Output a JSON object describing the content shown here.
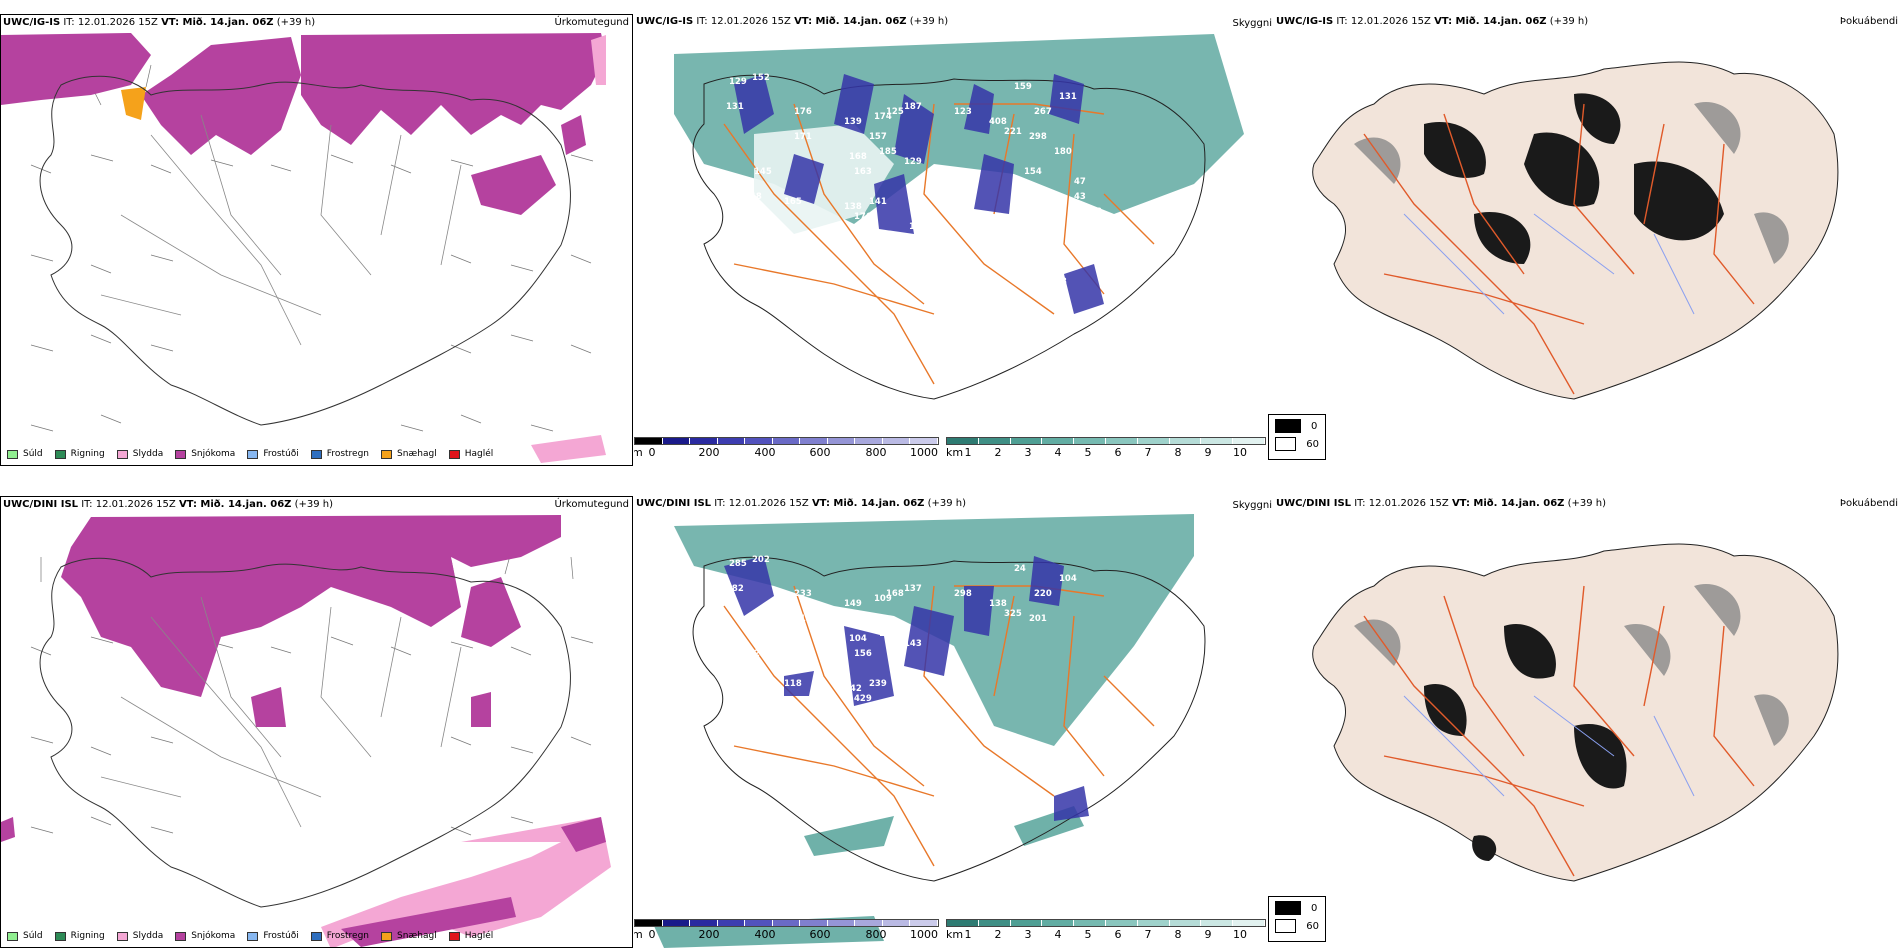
{
  "forecast_info": {
    "issue_time": "IT: 12.01.2026 15Z",
    "valid_time": "VT: Mið. 14.jan. 06Z",
    "lead": "(+39 h)"
  },
  "rows": [
    {
      "model": "UWC/IG-IS",
      "precip_panel_label": "Úrkomutegund",
      "ceiling_panel_label": "Skyggni",
      "fog_panel_label": "Þokuábendi",
      "cloud_base_labels": [
        "129",
        "152",
        "131",
        "176",
        "171",
        "145",
        "148",
        "165",
        "139",
        "168",
        "174",
        "157",
        "125",
        "185",
        "163",
        "187",
        "129",
        "138",
        "141",
        "176",
        "168",
        "123",
        "159",
        "267",
        "298",
        "408",
        "221",
        "131",
        "180",
        "154",
        "47",
        "43",
        "238",
        "158"
      ]
    },
    {
      "model": "UWC/DINI ISL",
      "precip_panel_label": "Úrkomutegund",
      "ceiling_panel_label": "Skyggni",
      "fog_panel_label": "Þokuábendi",
      "cloud_base_labels": [
        "285",
        "202",
        "282",
        "233",
        "116",
        "200",
        "300",
        "118",
        "149",
        "104",
        "109",
        "140",
        "168",
        "125",
        "156",
        "137",
        "143",
        "142",
        "239",
        "429",
        "171",
        "298",
        "24",
        "220",
        "201",
        "138",
        "325",
        "104"
      ]
    }
  ],
  "precip_legend": [
    {
      "label": "Súld",
      "color": "#90ee90"
    },
    {
      "label": "Rigning",
      "color": "#2e8b57"
    },
    {
      "label": "Slydda",
      "color": "#f4a7d4"
    },
    {
      "label": "Snjókoma",
      "color": "#b5429f"
    },
    {
      "label": "Frostúði",
      "color": "#87b7f0"
    },
    {
      "label": "Frostregn",
      "color": "#2f6fbf"
    },
    {
      "label": "Snæhagl",
      "color": "#f5a21b"
    },
    {
      "label": "Haglél",
      "color": "#e0141b"
    }
  ],
  "ceiling_scale": {
    "unit": "m",
    "ticks": [
      "0",
      "200",
      "400",
      "600",
      "800",
      "1000"
    ],
    "colors": [
      "#000000",
      "#1a1a8a",
      "#2a2aa0",
      "#3d3db0",
      "#5252bd",
      "#6a6ac6",
      "#8080cf",
      "#9595d6",
      "#a8a8dd",
      "#babae4",
      "#cbcbeb"
    ]
  },
  "visibility_scale": {
    "unit": "km",
    "ticks": [
      "1",
      "2",
      "3",
      "4",
      "5",
      "6",
      "7",
      "8",
      "9",
      "10"
    ],
    "colors": [
      "#2e7b72",
      "#3f8f85",
      "#4f9f94",
      "#62ada3",
      "#76bab1",
      "#8ac6be",
      "#9fd2cb",
      "#b5dcd7",
      "#cbe7e3",
      "#e2f2f0"
    ]
  },
  "fog_scale": {
    "values": [
      "0",
      "60"
    ],
    "colors": [
      "#000000",
      "#ffffff"
    ]
  },
  "colors": {
    "snow": "#b5429f",
    "sleet": "#f4a7d4",
    "ceiling_teal": "#4b9e94",
    "roads": "#e8782a",
    "fog_land": "#f2e4da"
  }
}
